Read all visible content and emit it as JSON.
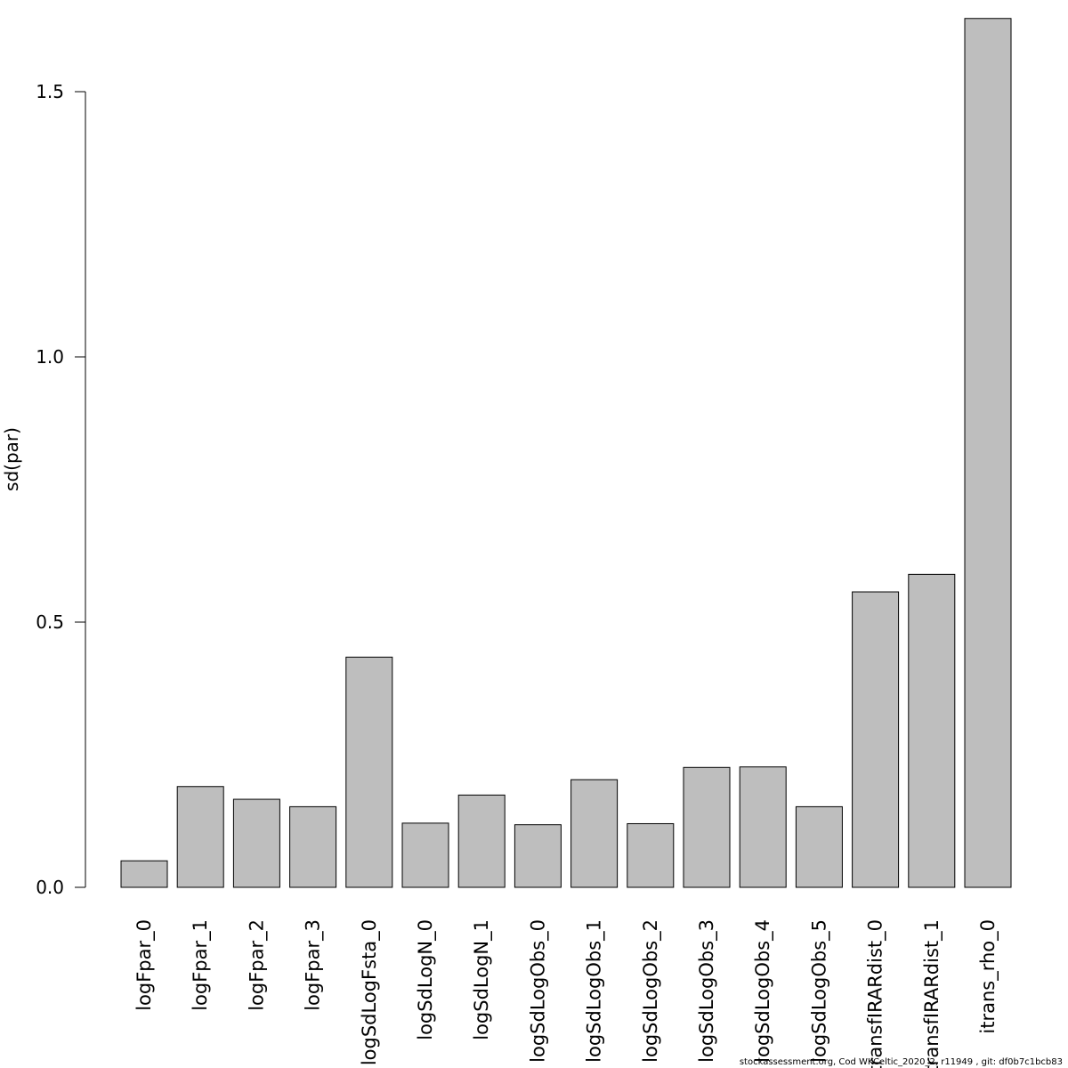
{
  "chart_data": {
    "type": "bar",
    "ylabel": "sd(par)",
    "ylim": [
      0,
      1.65
    ],
    "yticks": [
      "0.0",
      "0.5",
      "1.0",
      "1.5"
    ],
    "ytick_values": [
      0,
      0.5,
      1.0,
      1.5
    ],
    "categories": [
      "logFpar_0",
      "logFpar_1",
      "logFpar_2",
      "logFpar_3",
      "logSdLogFsta_0",
      "logSdLogN_0",
      "logSdLogN_1",
      "logSdLogObs_0",
      "logSdLogObs_1",
      "logSdLogObs_2",
      "logSdLogObs_3",
      "logSdLogObs_4",
      "logSdLogObs_5",
      "transfIRARdist_0",
      "transfIRARdist_1",
      "itrans_rho_0"
    ],
    "values": [
      0.05,
      0.19,
      0.166,
      0.152,
      0.434,
      0.121,
      0.174,
      0.118,
      0.203,
      0.12,
      0.226,
      0.227,
      0.152,
      0.557,
      0.59,
      1.638
    ],
    "bar_color": "#bebebe",
    "grid": false
  },
  "footer": "stockassessment.org, Cod WKCeltic_2020_2, r11949 , git: df0b7c1bcb83"
}
